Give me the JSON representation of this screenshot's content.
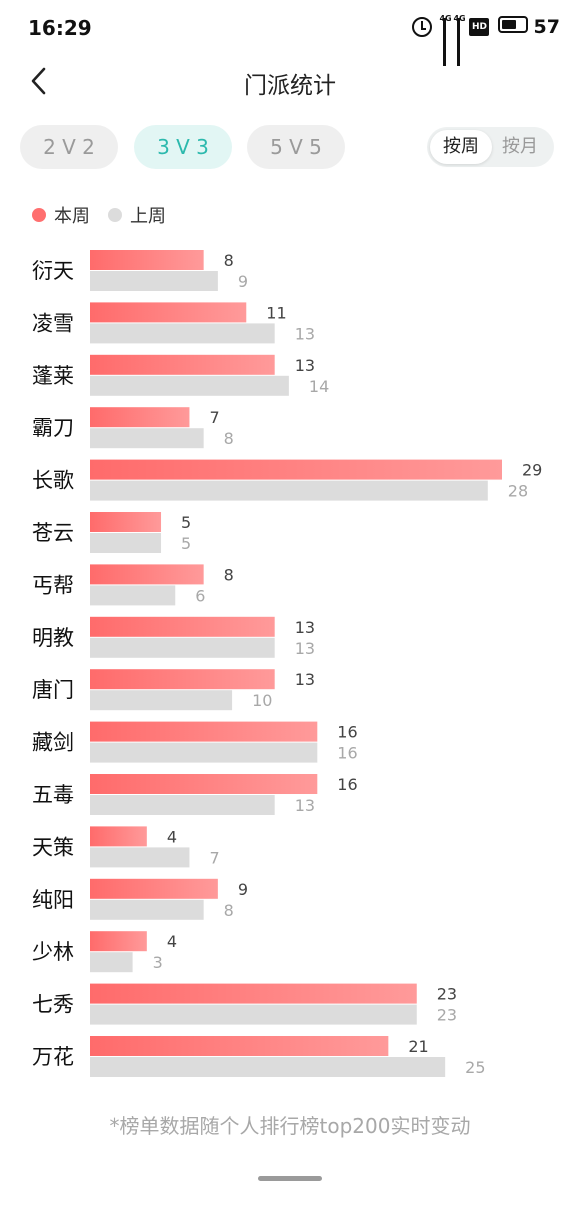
{
  "status_bar": {
    "time": "16:29",
    "net_tag_1": "4G",
    "net_tag_2": "4G",
    "hd_label": "HD",
    "battery": "57"
  },
  "header": {
    "title": "门派统计",
    "back_icon": "chevron-left-icon"
  },
  "mode_tabs": [
    {
      "label": "2 V 2",
      "active": false
    },
    {
      "label": "3 V 3",
      "active": true
    },
    {
      "label": "5 V 5",
      "active": false
    }
  ],
  "period_toggle": [
    {
      "label": "按周",
      "active": true
    },
    {
      "label": "按月",
      "active": false
    }
  ],
  "legend": {
    "current": "本周",
    "previous": "上周"
  },
  "colors": {
    "current_start": "#ff6b6b",
    "current_end": "#ff9a9a",
    "previous": "#dcdcdc",
    "accent": "#2cb9ad"
  },
  "chart_data": {
    "type": "bar",
    "orientation": "horizontal",
    "categories": [
      "衍天",
      "凌雪",
      "蓬莱",
      "霸刀",
      "长歌",
      "苍云",
      "丐帮",
      "明教",
      "唐门",
      "藏剑",
      "五毒",
      "天策",
      "纯阳",
      "少林",
      "七秀",
      "万花"
    ],
    "series": [
      {
        "name": "本周",
        "values": [
          8,
          11,
          13,
          7,
          29,
          5,
          8,
          13,
          13,
          16,
          16,
          4,
          9,
          4,
          23,
          21
        ]
      },
      {
        "name": "上周",
        "values": [
          9,
          13,
          14,
          8,
          28,
          5,
          6,
          13,
          10,
          16,
          13,
          7,
          8,
          3,
          23,
          25
        ]
      }
    ],
    "xlim": [
      0,
      29
    ],
    "legend_position": "top-left",
    "grid": false
  },
  "footnote": "*榜单数据随个人排行榜top200实时变动"
}
